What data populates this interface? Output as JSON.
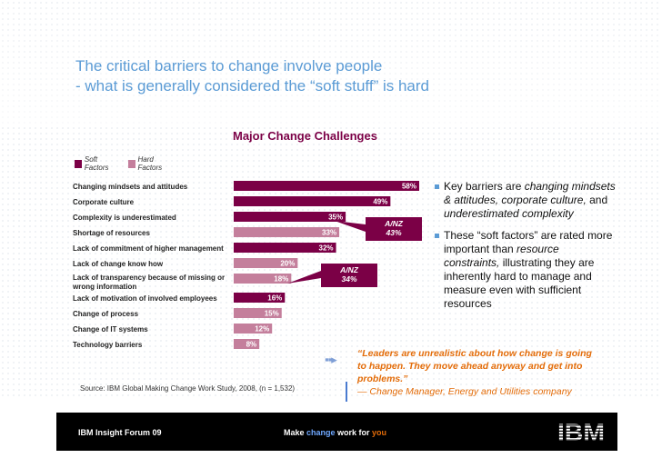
{
  "slide": {
    "title_line1": "The critical barriers to change involve people",
    "title_line2": "- what is generally considered the “soft stuff” is hard"
  },
  "colors": {
    "soft": "#7b0046",
    "hard": "#c47f9c",
    "accent": "#5b9bd5",
    "quote": "#e36c09"
  },
  "chart_data": {
    "type": "bar",
    "orientation": "horizontal",
    "title": "Major Change Challenges",
    "legend": [
      "Soft Factors",
      "Hard Factors"
    ],
    "xlim": [
      0,
      60
    ],
    "categories": [
      "Changing mindsets and attitudes",
      "Corporate culture",
      "Complexity is underestimated",
      "Shortage of resources",
      "Lack of commitment of higher management",
      "Lack of change know how",
      "Lack of transparency because of missing or wrong information",
      "Lack of motivation of involved employees",
      "Change of process",
      "Change of IT systems",
      "Technology barriers"
    ],
    "category_lines": [
      [
        "Changing mindsets and attitudes"
      ],
      [
        "Corporate culture"
      ],
      [
        "Complexity is underestimated"
      ],
      [
        "Shortage of resources"
      ],
      [
        "Lack of commitment of higher management"
      ],
      [
        "Lack of change know how"
      ],
      [
        "Lack of transparency because of missing or",
        "wrong information"
      ],
      [
        "Lack of motivation of involved employees"
      ],
      [
        "Change of process"
      ],
      [
        "Change of IT systems"
      ],
      [
        "Technology barriers"
      ]
    ],
    "values": [
      58,
      49,
      35,
      33,
      32,
      20,
      18,
      16,
      15,
      12,
      8
    ],
    "value_labels": [
      "58%",
      "49%",
      "35%",
      "33%",
      "32%",
      "20%",
      "18%",
      "16%",
      "15%",
      "12%",
      "8%"
    ],
    "factor_types": [
      "soft",
      "soft",
      "soft",
      "hard",
      "soft",
      "hard",
      "hard",
      "soft",
      "hard",
      "hard",
      "hard"
    ],
    "callouts": [
      {
        "lines": [
          "A/NZ",
          "43%"
        ],
        "category_index": 2
      },
      {
        "lines": [
          "A/NZ",
          "34%"
        ],
        "category_index": 5
      }
    ]
  },
  "source": "Source: IBM Global Making Change Work Study, 2008, (n = 1,532)",
  "bullets": [
    {
      "pre": "Key barriers are ",
      "em1": "changing mindsets & attitudes,",
      "mid": " ",
      "em2": "corporate culture,",
      "mid2": " and ",
      "em3": "underestimated complexity",
      "post": ""
    },
    {
      "pre": "These “soft factors” are rated more important than ",
      "em1": "resource constraints,",
      "mid": " illustrating they are inherently hard to manage and measure even with sufficient resources",
      "em2": "",
      "mid2": "",
      "em3": "",
      "post": ""
    }
  ],
  "quote": {
    "text": "“Leaders are unrealistic about how change is going to happen. They move ahead anyway and get into problems.”",
    "attribution": "— Change Manager, Energy and Utilities company"
  },
  "footer": {
    "left": "IBM Insight Forum 09",
    "mid_make": "Make ",
    "mid_change": "change",
    "mid_work": " work for ",
    "mid_you": "you"
  },
  "logo_text": "IBM"
}
